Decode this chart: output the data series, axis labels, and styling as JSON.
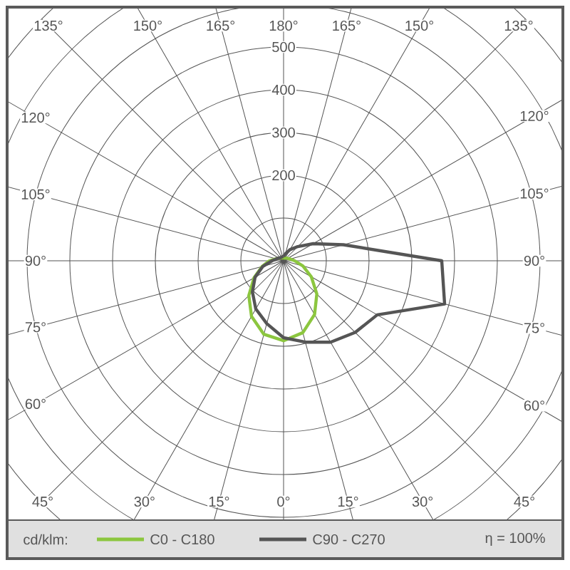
{
  "chart_data": {
    "type": "radar",
    "categories": [
      "180°",
      "165°",
      "150°",
      "135°",
      "120°",
      "105°",
      "90°",
      "75°",
      "60°",
      "45°",
      "30°",
      "15°",
      "0°",
      "15°",
      "30°",
      "45°",
      "60°",
      "75°",
      "90°",
      "105°",
      "120°",
      "135°",
      "150°",
      "165°"
    ],
    "series": [
      {
        "name": "C0 - C180",
        "color": "#8cc63f",
        "values": [
          7,
          7,
          7,
          9,
          11,
          16,
          26,
          47,
          75,
          110,
          145,
          174,
          187,
          178,
          150,
          115,
          80,
          52,
          33,
          18,
          12,
          9,
          8,
          7
        ]
      },
      {
        "name": "C90 - C270",
        "color": "#555555",
        "values": [
          10,
          17,
          30,
          47,
          80,
          145,
          370,
          390,
          253,
          237,
          220,
          197,
          180,
          152,
          130,
          103,
          77,
          50,
          27,
          17,
          13,
          10,
          10,
          10
        ]
      }
    ],
    "ylim": [
      0,
      800
    ],
    "yticks": [
      200,
      300,
      400,
      500
    ],
    "grid": true,
    "legend": "bottom",
    "legend_title": "cd/klm:",
    "annotations": [
      "η = 100%"
    ]
  }
}
